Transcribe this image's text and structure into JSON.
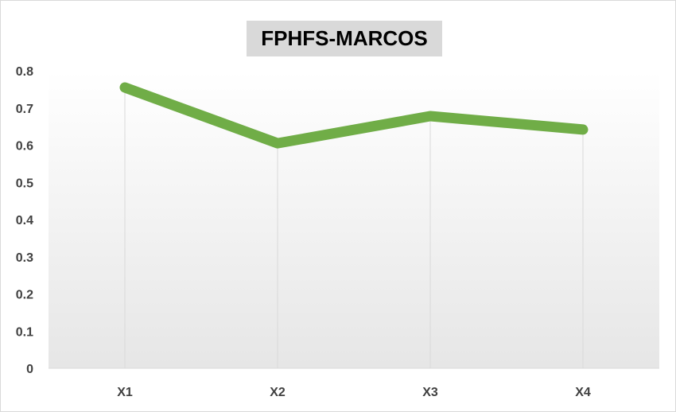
{
  "chart_data": {
    "type": "line",
    "title": "FPHFS-MARCOS",
    "categories": [
      "X1",
      "X2",
      "X3",
      "X4"
    ],
    "series": [
      {
        "values": [
          0.755,
          0.605,
          0.678,
          0.642
        ]
      }
    ],
    "ylim": [
      0,
      0.8
    ],
    "yticks": [
      "0",
      "0.1",
      "0.2",
      "0.3",
      "0.4",
      "0.5",
      "0.6",
      "0.7",
      "0.8"
    ],
    "xlabel": "",
    "ylabel": "",
    "grid": "vertical drop lines",
    "legend": "none",
    "colors": {
      "line": "#70ad47",
      "drop_line": "#d9d9d9",
      "plot_gradient_bottom": "#e6e6e6"
    }
  }
}
